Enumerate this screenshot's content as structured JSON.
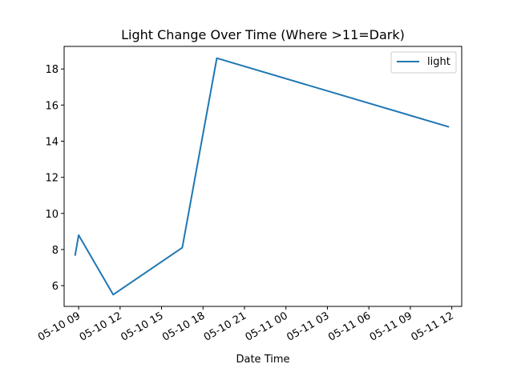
{
  "chart_data": {
    "type": "line",
    "title": "Light Change Over Time (Where >11=Dark)",
    "xlabel": "Date Time",
    "ylabel": "",
    "x_type": "datetime",
    "xlim": [
      "2024-05-10 07:57",
      "2024-05-11 12:43"
    ],
    "ylim": [
      4.85,
      19.25
    ],
    "grid": false,
    "legend_position": "upper right",
    "x_ticks": [
      {
        "value": "2024-05-10 09:00",
        "label": "05-10 09"
      },
      {
        "value": "2024-05-10 12:00",
        "label": "05-10 12"
      },
      {
        "value": "2024-05-10 15:00",
        "label": "05-10 15"
      },
      {
        "value": "2024-05-10 18:00",
        "label": "05-10 18"
      },
      {
        "value": "2024-05-10 21:00",
        "label": "05-10 21"
      },
      {
        "value": "2024-05-11 00:00",
        "label": "05-11 00"
      },
      {
        "value": "2024-05-11 03:00",
        "label": "05-11 03"
      },
      {
        "value": "2024-05-11 06:00",
        "label": "05-11 06"
      },
      {
        "value": "2024-05-11 09:00",
        "label": "05-11 09"
      },
      {
        "value": "2024-05-11 12:00",
        "label": "05-11 12"
      }
    ],
    "y_ticks": [
      6,
      8,
      10,
      12,
      14,
      16,
      18
    ],
    "series": [
      {
        "name": "light",
        "color": "#1f77b4",
        "points": [
          {
            "x": "2024-05-10 08:45",
            "y": 7.7
          },
          {
            "x": "2024-05-10 09:00",
            "y": 8.8
          },
          {
            "x": "2024-05-10 11:30",
            "y": 5.5
          },
          {
            "x": "2024-05-10 16:30",
            "y": 8.1
          },
          {
            "x": "2024-05-10 19:00",
            "y": 18.6
          },
          {
            "x": "2024-05-11 11:45",
            "y": 14.8
          }
        ]
      }
    ]
  }
}
